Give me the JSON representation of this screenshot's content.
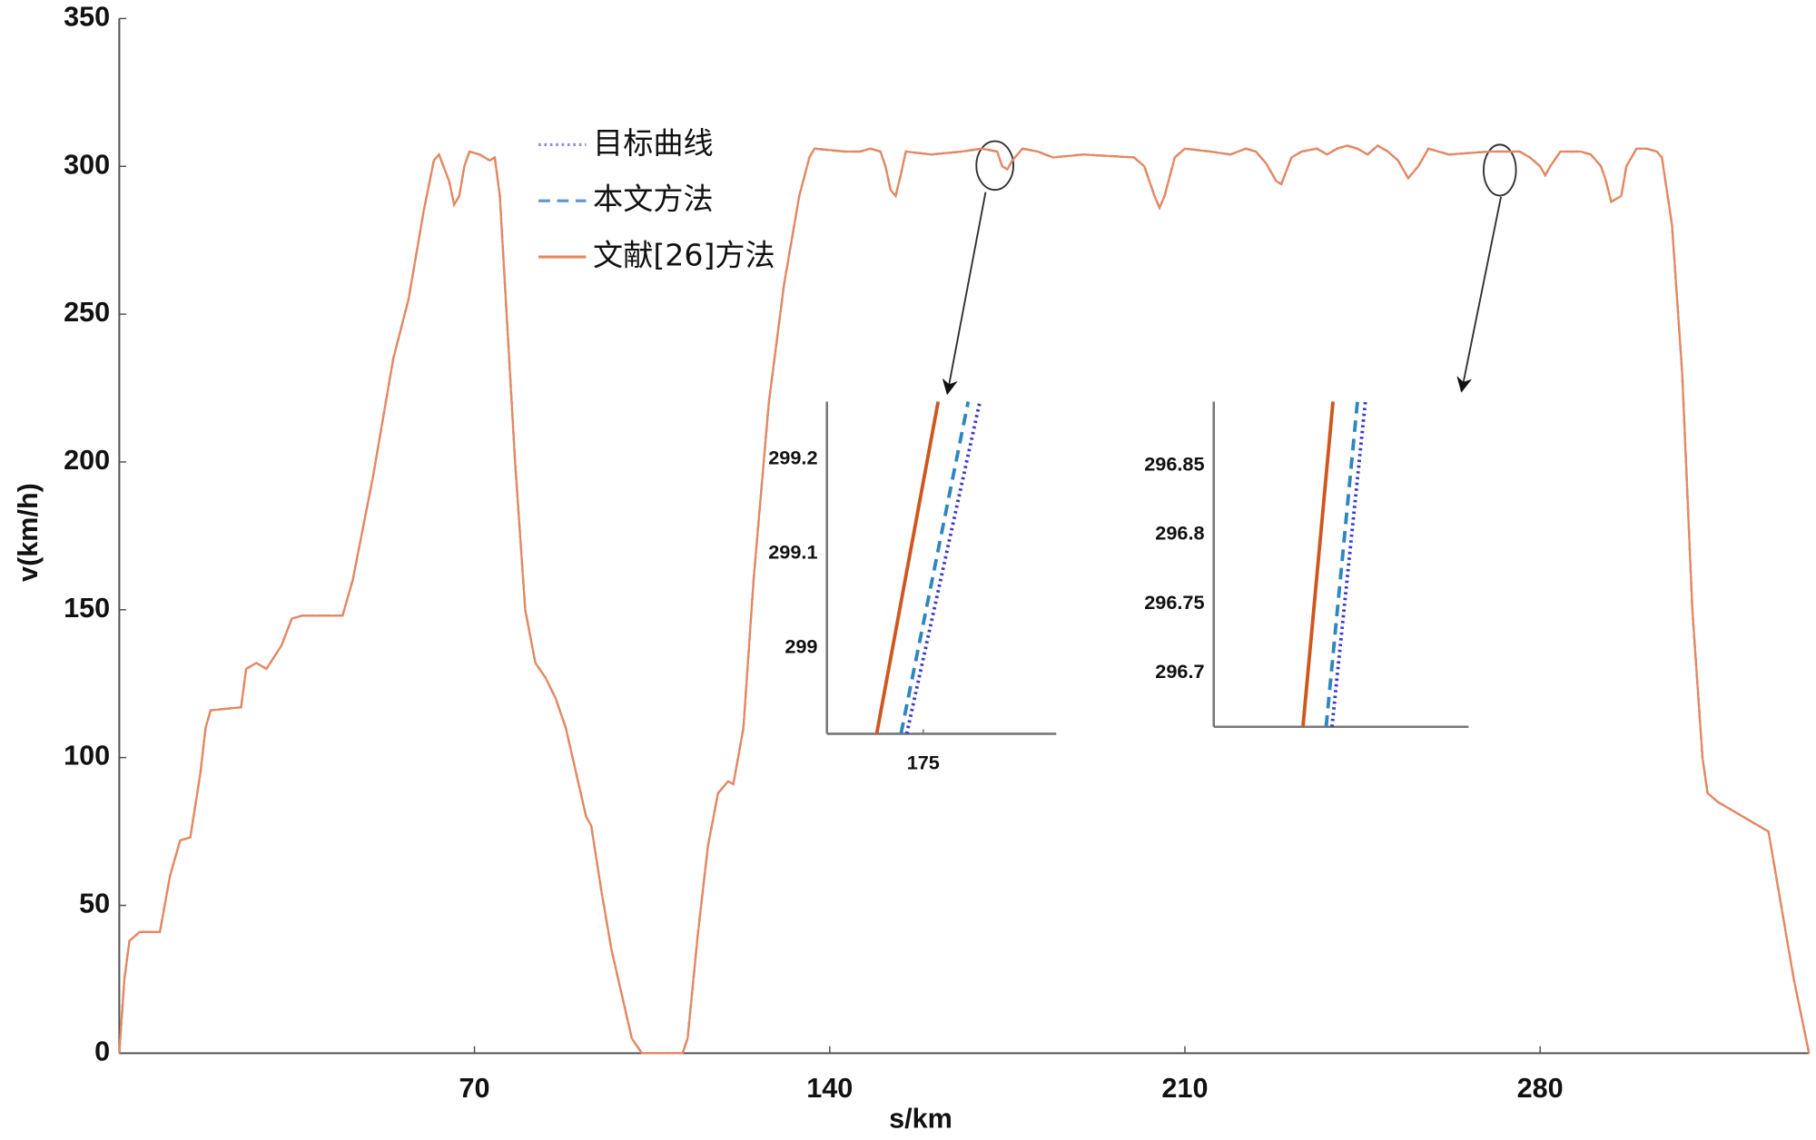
{
  "chart_data": [
    {
      "type": "line",
      "xlabel": "s/km",
      "ylabel": "v(km/h)",
      "xlim": [
        0,
        333
      ],
      "ylim": [
        0,
        350
      ],
      "xticks": [
        70,
        140,
        210,
        280
      ],
      "yticks": [
        0,
        50,
        100,
        150,
        200,
        250,
        300,
        350
      ],
      "legend": "upper center",
      "x": [
        0,
        1,
        2,
        4,
        8,
        10,
        12,
        14,
        16,
        17,
        18,
        24,
        25,
        27,
        29,
        32,
        34,
        36,
        44,
        46,
        50,
        54,
        57,
        60,
        62,
        63,
        65,
        66,
        67,
        68,
        69,
        71,
        73,
        74,
        75,
        76,
        78,
        80,
        82,
        84,
        86,
        88,
        90,
        92,
        93,
        95,
        97,
        99,
        101,
        103,
        111,
        112,
        114,
        116,
        118,
        120,
        121,
        123,
        125,
        128,
        131,
        134,
        136,
        137,
        143,
        146,
        148,
        150,
        151,
        152,
        153,
        154,
        155,
        160,
        166,
        170,
        173,
        174,
        175,
        176,
        178,
        181,
        184,
        190,
        200,
        202,
        204,
        205,
        206,
        208,
        210,
        215,
        219,
        222,
        224,
        226,
        228,
        229,
        231,
        233,
        236,
        238,
        240,
        242,
        244,
        246,
        248,
        250,
        252,
        254,
        256,
        258,
        262,
        270,
        276,
        278,
        280,
        281,
        282,
        284,
        288,
        290,
        292,
        293,
        294,
        296,
        297,
        299,
        301,
        303,
        304,
        306,
        308,
        310,
        312,
        313,
        315,
        318,
        322,
        325,
        327,
        330,
        333
      ],
      "series": [
        {
          "name": "目标曲线",
          "color": "#8c8ce0",
          "linestyle": "dotted",
          "values": [
            0,
            25,
            38,
            41,
            41,
            60,
            72,
            73,
            95,
            110,
            116,
            117,
            130,
            132,
            130,
            138,
            147,
            148,
            148,
            160,
            195,
            235,
            255,
            285,
            302,
            304,
            295,
            287,
            290,
            300,
            305,
            304,
            302,
            303,
            290,
            260,
            200,
            150,
            132,
            127,
            120,
            110,
            95,
            80,
            77,
            55,
            35,
            20,
            5,
            0,
            0,
            5,
            40,
            70,
            88,
            92,
            91,
            110,
            160,
            220,
            260,
            290,
            303,
            306,
            305,
            305,
            306,
            305,
            300,
            292,
            290,
            297,
            305,
            304,
            305,
            306,
            305,
            300,
            299,
            302,
            306,
            305,
            303,
            304,
            303,
            300,
            290,
            286,
            290,
            303,
            306,
            305,
            304,
            306,
            305,
            301,
            295,
            294,
            303,
            305,
            306,
            304,
            306,
            307,
            306,
            304,
            307,
            305,
            302,
            296,
            300,
            306,
            304,
            305,
            305,
            303,
            300,
            297,
            300,
            305,
            305,
            304,
            300,
            295,
            288,
            290,
            300,
            306,
            306,
            305,
            303,
            280,
            230,
            150,
            100,
            88,
            85,
            82,
            78,
            75,
            55,
            25,
            0
          ]
        },
        {
          "name": "本文方法",
          "color": "#5b9bd5",
          "linestyle": "dashed",
          "values": [
            0,
            25,
            38,
            41,
            41,
            60,
            72,
            73,
            95,
            110,
            116,
            117,
            130,
            132,
            130,
            138,
            147,
            148,
            148,
            160,
            195,
            235,
            255,
            285,
            302,
            304,
            295,
            287,
            290,
            300,
            305,
            304,
            302,
            303,
            290,
            260,
            200,
            150,
            132,
            127,
            120,
            110,
            95,
            80,
            77,
            55,
            35,
            20,
            5,
            0,
            0,
            5,
            40,
            70,
            88,
            92,
            91,
            110,
            160,
            220,
            260,
            290,
            303,
            306,
            305,
            305,
            306,
            305,
            300,
            292,
            290,
            297,
            305,
            304,
            305,
            306,
            305,
            300,
            299,
            302,
            306,
            305,
            303,
            304,
            303,
            300,
            290,
            286,
            290,
            303,
            306,
            305,
            304,
            306,
            305,
            301,
            295,
            294,
            303,
            305,
            306,
            304,
            306,
            307,
            306,
            304,
            307,
            305,
            302,
            296,
            300,
            306,
            304,
            305,
            305,
            303,
            300,
            297,
            300,
            305,
            305,
            304,
            300,
            295,
            288,
            290,
            300,
            306,
            306,
            305,
            303,
            280,
            230,
            150,
            100,
            88,
            85,
            82,
            78,
            75,
            55,
            25,
            0
          ]
        },
        {
          "name": "文献[26]方法",
          "color": "#e8875e",
          "linestyle": "solid",
          "values": [
            0,
            25,
            38,
            41,
            41,
            60,
            72,
            73,
            95,
            110,
            116,
            117,
            130,
            132,
            130,
            138,
            147,
            148,
            148,
            160,
            195,
            235,
            255,
            285,
            302,
            304,
            295,
            287,
            290,
            300,
            305,
            304,
            302,
            303,
            290,
            260,
            200,
            150,
            132,
            127,
            120,
            110,
            95,
            80,
            77,
            55,
            35,
            20,
            5,
            0,
            0,
            5,
            40,
            70,
            88,
            92,
            91,
            110,
            160,
            220,
            260,
            290,
            303,
            306,
            305,
            305,
            306,
            305,
            300,
            292,
            290,
            297,
            305,
            304,
            305,
            306,
            305,
            300,
            299,
            302,
            306,
            305,
            303,
            304,
            303,
            300,
            290,
            286,
            290,
            303,
            306,
            305,
            304,
            306,
            305,
            301,
            295,
            294,
            303,
            305,
            306,
            304,
            306,
            307,
            306,
            304,
            307,
            305,
            302,
            296,
            300,
            306,
            304,
            305,
            305,
            303,
            300,
            297,
            300,
            305,
            305,
            304,
            300,
            295,
            288,
            290,
            300,
            306,
            306,
            305,
            303,
            280,
            230,
            150,
            100,
            88,
            85,
            82,
            78,
            75,
            55,
            25,
            0
          ]
        }
      ]
    },
    {
      "type": "line",
      "xlim": [
        174.58,
        175.58
      ],
      "ylim": [
        298.909,
        299.261
      ],
      "xticks": [
        175
      ],
      "yticks": [
        299,
        299.1,
        299.2
      ],
      "series": [
        {
          "color": "#3a3ac8",
          "linestyle": "dotted",
          "x": [
            174.928,
            175.247
          ],
          "values": [
            298.909,
            299.261
          ]
        },
        {
          "color": "#2e86c1",
          "linestyle": "dashed",
          "x": [
            174.903,
            175.196
          ],
          "values": [
            298.909,
            299.261
          ]
        },
        {
          "color": "#d0561f",
          "linestyle": "solid",
          "x": [
            174.797,
            175.065
          ],
          "values": [
            298.909,
            299.261
          ]
        }
      ]
    },
    {
      "type": "line",
      "xlim": [
        0,
        1
      ],
      "ylim": [
        296.661,
        296.896
      ],
      "yticks": [
        296.7,
        296.75,
        296.8,
        296.85
      ],
      "series": [
        {
          "color": "#3a3ac8",
          "linestyle": "dotted",
          "x": [
            0.464,
            0.595
          ],
          "values": [
            296.661,
            296.896
          ]
        },
        {
          "color": "#2e86c1",
          "linestyle": "dashed",
          "x": [
            0.441,
            0.564
          ],
          "values": [
            296.661,
            296.896
          ]
        },
        {
          "color": "#d0561f",
          "linestyle": "solid",
          "x": [
            0.35,
            0.468
          ],
          "values": [
            296.661,
            296.896
          ]
        }
      ]
    }
  ]
}
